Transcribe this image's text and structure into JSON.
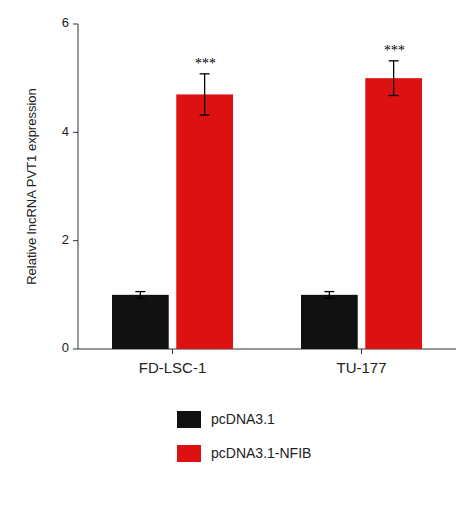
{
  "chart_data": {
    "type": "bar",
    "ylabel": "Relative lncRNA PVT1 expression",
    "categories": [
      "FD-LSC-1",
      "TU-177"
    ],
    "series": [
      {
        "name": "pcDNA3.1",
        "color": "#111111",
        "values": [
          1.0,
          1.0
        ],
        "errors": [
          0.06,
          0.06
        ]
      },
      {
        "name": "pcDNA3.1-NFIB",
        "color": "#dd1111",
        "values": [
          4.7,
          5.0
        ],
        "errors": [
          0.38,
          0.32
        ],
        "annotations": [
          "***",
          "***"
        ]
      }
    ],
    "ylim": [
      0,
      6
    ],
    "yticks": [
      0,
      2,
      4,
      6
    ],
    "grid": false,
    "legend": "bottom"
  }
}
